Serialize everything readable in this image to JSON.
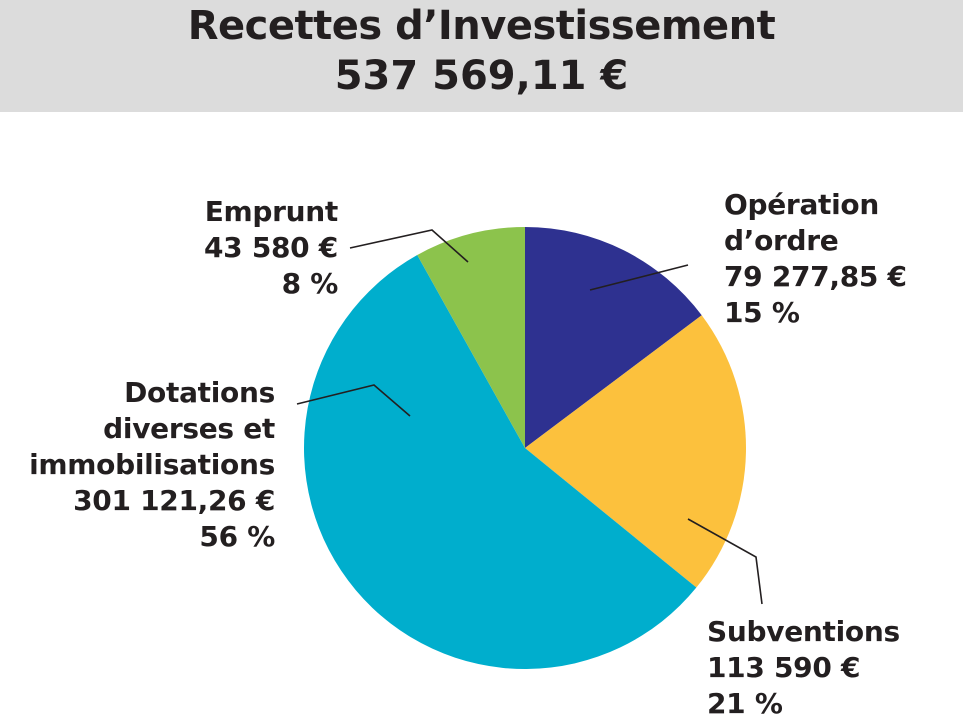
{
  "header": {
    "title": "Recettes d’Investissement",
    "total": "537 569,11 €"
  },
  "colors": {
    "header_bg": "#dcdcdc",
    "operation": "#2e3190",
    "subventions": "#fcc13d",
    "dotations": "#00aecd",
    "emprunt": "#8cc34c"
  },
  "chart_data": {
    "type": "pie",
    "title": "Recettes d’Investissement",
    "subtitle": "537 569,11 €",
    "slices": [
      {
        "name": "Opération d’ordre",
        "value": 79277.85,
        "percent": 15,
        "color": "#2e3190"
      },
      {
        "name": "Subventions",
        "value": 113590,
        "percent": 21,
        "color": "#fcc13d"
      },
      {
        "name": "Dotations diverses et immobilisations",
        "value": 301121.26,
        "percent": 56,
        "color": "#00aecd"
      },
      {
        "name": "Emprunt",
        "value": 43580,
        "percent": 8,
        "color": "#8cc34c"
      }
    ]
  },
  "labels": {
    "emprunt": {
      "lines": [
        "Emprunt",
        "43 580 €",
        "8 %"
      ]
    },
    "operation": {
      "lines": [
        "Opération",
        "d’ordre",
        "79 277,85 €",
        "15 %"
      ]
    },
    "dotations": {
      "lines": [
        "Dotations",
        "diverses et",
        "immobilisations",
        "301 121,26 €",
        "56 %"
      ]
    },
    "subventions": {
      "lines": [
        "Subventions",
        "113 590 €",
        "21 %"
      ]
    }
  }
}
